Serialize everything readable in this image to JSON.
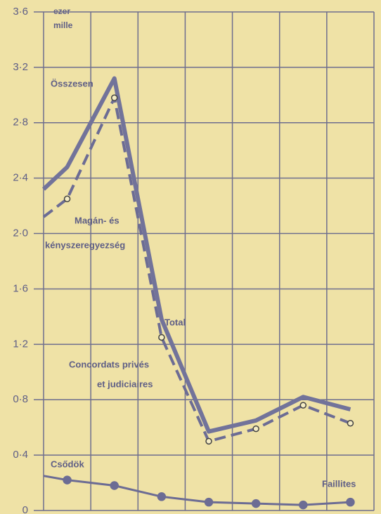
{
  "chart_data": {
    "type": "line",
    "unit_label": [
      "ezer",
      "mille"
    ],
    "x": [
      0,
      0.5,
      1.5,
      2.5,
      3.5,
      4.5,
      5.5,
      6.5
    ],
    "xlim": [
      0,
      7
    ],
    "xticks": [
      0,
      1,
      2,
      3,
      4,
      5,
      6,
      7
    ],
    "ylim": [
      0,
      3.6
    ],
    "yticks": [
      0,
      {
        "value": 0.4,
        "label": "0·4"
      },
      {
        "value": 0.8,
        "label": "0·8"
      },
      {
        "value": 1.2,
        "label": "1·2"
      },
      {
        "value": 1.6,
        "label": "1·6"
      },
      {
        "value": 2.0,
        "label": "2·0"
      },
      {
        "value": 2.4,
        "label": "2·4"
      },
      {
        "value": 2.8,
        "label": "2·8"
      },
      {
        "value": 3.2,
        "label": "3·2"
      },
      {
        "value": 3.6,
        "label": "3·6"
      }
    ],
    "grid": true,
    "series": [
      {
        "name": "Összesen",
        "color": "#72739a",
        "style": "solid",
        "values": [
          2.32,
          2.48,
          3.12,
          1.38,
          0.57,
          0.65,
          0.82,
          0.73
        ]
      },
      {
        "name": "Magán- és kényszeregyezség",
        "color": "#6c6c94",
        "style": "dashed",
        "values": [
          2.12,
          2.25,
          2.98,
          1.25,
          0.5,
          0.59,
          0.76,
          0.63
        ]
      },
      {
        "name": "Csődök",
        "color": "#6c6c94",
        "style": "dotted-solid",
        "values": [
          0.25,
          0.22,
          0.18,
          0.1,
          0.06,
          0.05,
          0.04,
          0.06
        ]
      }
    ],
    "annotations": [
      "Összesen",
      "Magán- és",
      "kényszeregyezség",
      "Total",
      "Concordats privés",
      "et judiciaires",
      "Csődök",
      "Faillites"
    ]
  }
}
